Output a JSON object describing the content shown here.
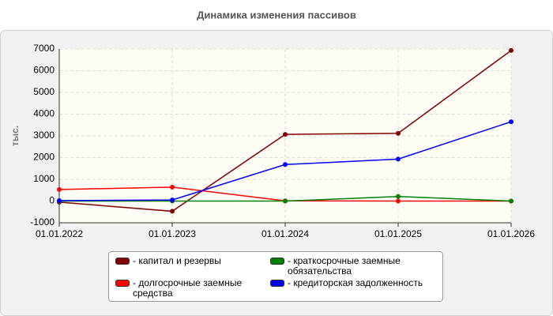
{
  "chart_data": {
    "type": "line",
    "title": "Динамика изменения пассивов",
    "y_label": "тыс.",
    "categories": [
      "01.01.2022",
      "01.01.2023",
      "01.01.2024",
      "01.01.2025",
      "01.01.2026"
    ],
    "series": [
      {
        "name": "- капитал и резервы",
        "color": "#800000",
        "values": [
          -50,
          -470,
          3070,
          3120,
          6930
        ]
      },
      {
        "name": "- долгосрочные заемные средства",
        "color": "#ff0000",
        "values": [
          530,
          640,
          10,
          0,
          0
        ]
      },
      {
        "name": "- краткосрочные заемные обязательства",
        "color": "#008000",
        "values": [
          0,
          0,
          0,
          210,
          0
        ]
      },
      {
        "name": "- кредиторская задолженность",
        "color": "#0000ff",
        "values": [
          20,
          50,
          1680,
          1930,
          3650
        ]
      }
    ],
    "ylim": [
      -1000,
      7000
    ],
    "yticks": [
      -1000,
      0,
      1000,
      2000,
      3000,
      4000,
      5000,
      6000,
      7000
    ],
    "grid": true
  }
}
